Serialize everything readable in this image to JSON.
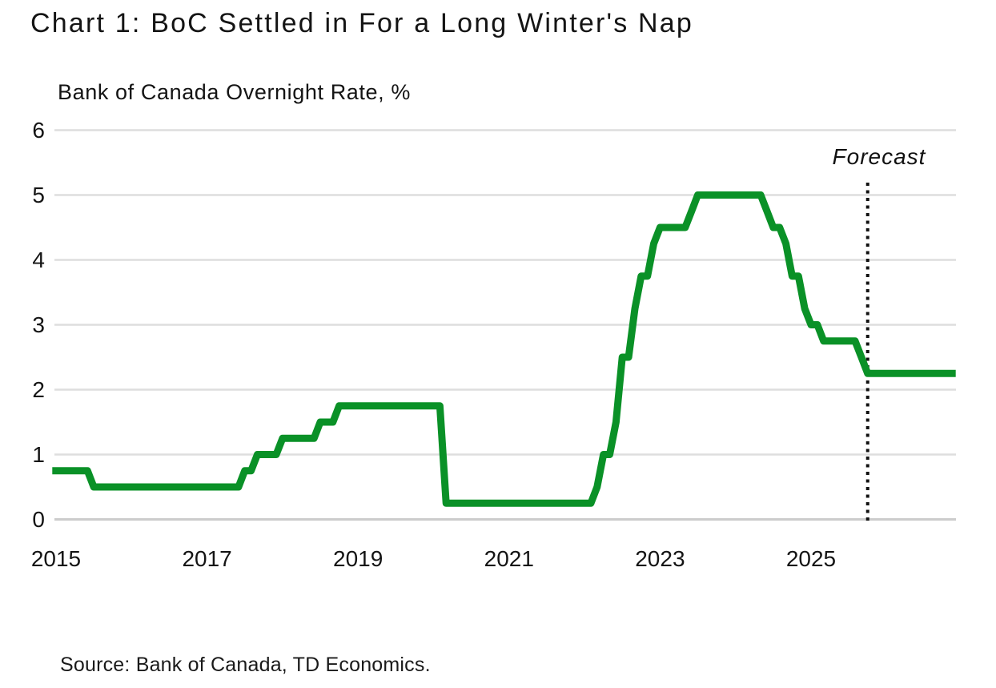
{
  "header": {
    "title": "Chart 1: BoC Settled in For a Long Winter's Nap"
  },
  "footer": {
    "source": "Source: Bank of Canada, TD Economics."
  },
  "chart_data": {
    "type": "line",
    "title": "Chart 1: BoC Settled in For a Long Winter's Nap",
    "subtitle": "Bank of Canada Overnight Rate, %",
    "ylabel": "Bank of Canada Overnight Rate, %",
    "xlabel": "",
    "ylim": [
      0,
      6
    ],
    "xlim": [
      2015,
      2026.95
    ],
    "grid": true,
    "y_ticks": [
      0,
      1,
      2,
      3,
      4,
      5,
      6
    ],
    "x_tick_labels": [
      "2015",
      "2017",
      "2019",
      "2021",
      "2023",
      "2025"
    ],
    "x_tick_years": [
      2015,
      2017,
      2019,
      2021,
      2023,
      2025
    ],
    "legend_position": "none",
    "annotations": [
      {
        "text": "Forecast",
        "style": "italic",
        "position": "above-forecast-line"
      }
    ],
    "forecast_divider": {
      "year": 2025.75,
      "line_style": "dotted",
      "color": "#111111"
    },
    "line_color": "#0a9127",
    "gridline_color": "#dedede",
    "axis_line_color": "#cccccc",
    "series_name": "Bank of Canada Overnight Rate, %",
    "rate_changes": [
      [
        "2015-01",
        0.75
      ],
      [
        "2015-07",
        0.5
      ],
      [
        "2017-07",
        0.75
      ],
      [
        "2017-09",
        1.0
      ],
      [
        "2018-01",
        1.25
      ],
      [
        "2018-07",
        1.5
      ],
      [
        "2018-10",
        1.75
      ],
      [
        "2020-03",
        0.25
      ],
      [
        "2022-03",
        0.5
      ],
      [
        "2022-04",
        1.0
      ],
      [
        "2022-06",
        1.5
      ],
      [
        "2022-07",
        2.5
      ],
      [
        "2022-09",
        3.25
      ],
      [
        "2022-10",
        3.75
      ],
      [
        "2022-12",
        4.25
      ],
      [
        "2023-01",
        4.5
      ],
      [
        "2023-06",
        4.75
      ],
      [
        "2023-07",
        5.0
      ],
      [
        "2024-06",
        4.75
      ],
      [
        "2024-07",
        4.5
      ],
      [
        "2024-09",
        4.25
      ],
      [
        "2024-10",
        3.75
      ],
      [
        "2024-12",
        3.25
      ],
      [
        "2025-01",
        3.0
      ],
      [
        "2025-03",
        2.75
      ],
      [
        "2025-09",
        2.5
      ],
      [
        "2025-10",
        2.25
      ]
    ],
    "series_end": "2026-12"
  }
}
